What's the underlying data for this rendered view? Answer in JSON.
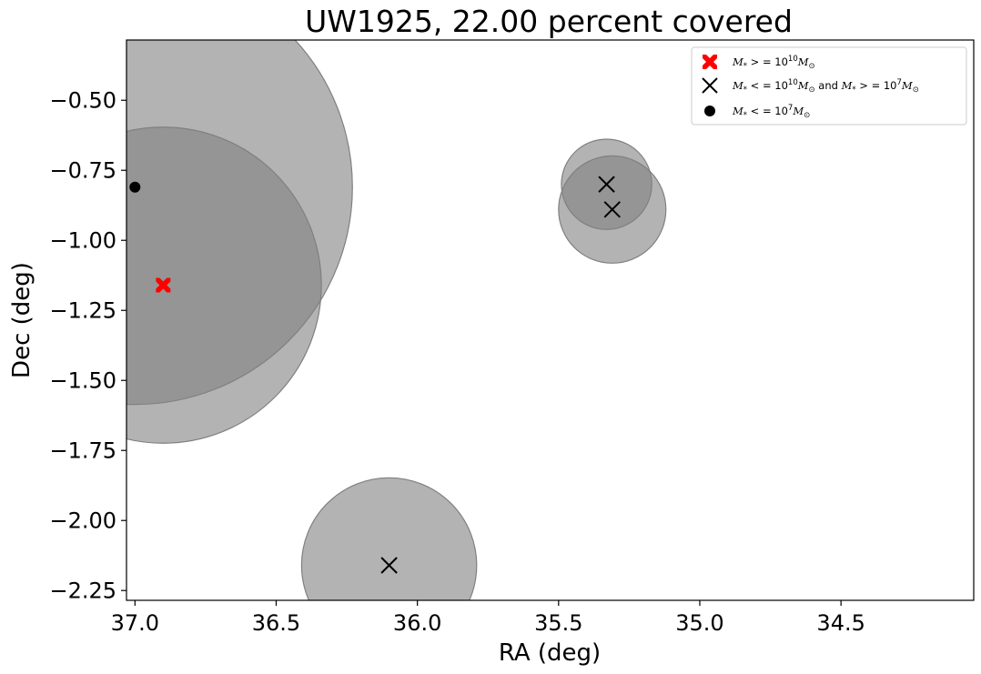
{
  "chart_data": {
    "type": "scatter",
    "title": "UW1925, 22.00 percent covered",
    "xlabel": "RA (deg)",
    "ylabel": "Dec (deg)",
    "xlim": [
      37.03,
      34.03
    ],
    "ylim": [
      -2.285,
      -0.285
    ],
    "x_inverted": true,
    "xticks": [
      37.0,
      36.5,
      36.0,
      35.5,
      35.0,
      34.5
    ],
    "xtick_labels": [
      "37.0",
      "36.5",
      "36.0",
      "35.5",
      "35.0",
      "34.5"
    ],
    "yticks": [
      -0.5,
      -0.75,
      -1.0,
      -1.25,
      -1.5,
      -1.75,
      -2.0,
      -2.25
    ],
    "ytick_labels": [
      "−0.50",
      "−0.75",
      "−1.00",
      "−1.25",
      "−1.50",
      "−1.75",
      "−2.00",
      "−2.25"
    ],
    "grid": false,
    "legend_position": "top-right",
    "series": [
      {
        "name": "M* >= 10^10 M_sun",
        "marker": "filled-x",
        "color": "#ff0000",
        "points": [
          {
            "x": 36.9,
            "y": -1.16
          }
        ]
      },
      {
        "name": "M* <= 10^10 M_sun and M* >= 10^7 M_sun",
        "marker": "x",
        "color": "#000000",
        "points": [
          {
            "x": 35.33,
            "y": -0.8
          },
          {
            "x": 35.31,
            "y": -0.89
          },
          {
            "x": 36.1,
            "y": -2.16
          }
        ]
      },
      {
        "name": "M* <= 10^7 M_sun",
        "marker": "circle",
        "color": "#000000",
        "points": [
          {
            "x": 37.0,
            "y": -0.81
          }
        ]
      }
    ],
    "coverage_circles": [
      {
        "x": 36.9,
        "y": -1.16,
        "radius_deg": 0.56
      },
      {
        "x": 37.0,
        "y": -0.81,
        "radius_deg": 0.77
      },
      {
        "x": 35.33,
        "y": -0.8,
        "radius_deg": 0.16
      },
      {
        "x": 35.31,
        "y": -0.89,
        "radius_deg": 0.19
      },
      {
        "x": 36.1,
        "y": -2.16,
        "radius_deg": 0.31
      }
    ],
    "coverage_color": "#808080",
    "coverage_opacity": 0.6
  },
  "legend": {
    "item1": {
      "m": "M",
      "sub": "*",
      "rel": " > = 10",
      "exp": "10",
      "m2": "M",
      "sub2": "⊙"
    },
    "item2a": {
      "m": "M",
      "sub": "*",
      "rel": " < = 10",
      "exp": "10",
      "m2": "M",
      "sub2": "⊙"
    },
    "item2b": {
      "and": " and ",
      "m": "M",
      "sub": "*",
      "rel": " > = 10",
      "exp": "7",
      "m2": "M",
      "sub2": "⊙"
    },
    "item3": {
      "m": "M",
      "sub": "*",
      "rel": " < = 10",
      "exp": "7",
      "m2": "M",
      "sub2": "⊙"
    }
  }
}
